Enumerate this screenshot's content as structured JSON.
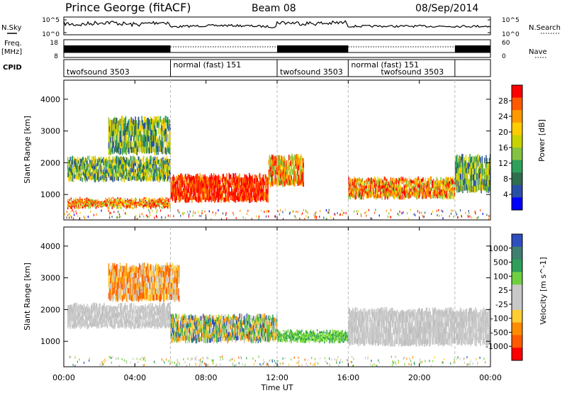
{
  "header": {
    "station": "Prince George (fitACF)",
    "beam": "Beam 08",
    "date": "08/Sep/2014"
  },
  "left_labels": {
    "nsky": "N.Sky",
    "freq": "Freq.",
    "freq_unit": "[MHz]",
    "cpid": "CPID"
  },
  "right_labels": {
    "nsearch": "N.Search",
    "nave": "Nave"
  },
  "noise_panel": {
    "left_ticks": [
      "10^5",
      "10^0"
    ],
    "right_ticks": [
      "10^5",
      "10^0"
    ]
  },
  "freq_panel": {
    "left_ticks": [
      "18",
      "8"
    ],
    "right_ticks": [
      "60",
      "0"
    ],
    "high_nave_segments": [
      [
        0,
        6
      ],
      [
        12,
        16
      ],
      [
        22,
        24
      ]
    ]
  },
  "cpid_segments": [
    {
      "start": 0,
      "end": 6,
      "labels": [
        "twofsound 3503"
      ]
    },
    {
      "start": 6,
      "end": 12,
      "labels": [
        "normal (fast) 151"
      ]
    },
    {
      "start": 12,
      "end": 16,
      "labels": [
        "twofsound 3503"
      ]
    },
    {
      "start": 16,
      "end": 22,
      "labels": [
        "normal (fast) 151",
        "twofsound 3503"
      ]
    }
  ],
  "chart_data": [
    {
      "type": "heatmap",
      "name": "power",
      "ylabel": "Slant Range [km]",
      "ylim": [
        200,
        4600
      ],
      "yticks": [
        1000,
        2000,
        3000,
        4000
      ],
      "xlim": [
        0,
        24
      ],
      "colorbar_label": "Power [dB]",
      "colorbar_ticks": [
        "28",
        "24",
        "20",
        "16",
        "12",
        "8",
        "4"
      ],
      "colorbar_colors": [
        "#ff0000",
        "#ff5a00",
        "#ff9900",
        "#ffcc00",
        "#c8d200",
        "#84c341",
        "#2fa05a",
        "#2f6e4e",
        "#2a4fa6",
        "#0000ff"
      ],
      "echo_regions": [
        {
          "t0": 0.2,
          "t1": 6.0,
          "r0": 1450,
          "r1": 2150,
          "level": "mid"
        },
        {
          "t0": 0.2,
          "t1": 6.0,
          "r0": 600,
          "r1": 850,
          "level": "high"
        },
        {
          "t0": 2.5,
          "t1": 6.0,
          "r0": 2300,
          "r1": 3400,
          "level": "mid"
        },
        {
          "t0": 6.0,
          "t1": 11.5,
          "r0": 800,
          "r1": 1600,
          "level": "very-high"
        },
        {
          "t0": 11.5,
          "t1": 13.5,
          "r0": 1300,
          "r1": 2200,
          "level": "high"
        },
        {
          "t0": 16.0,
          "t1": 22.0,
          "r0": 900,
          "r1": 1500,
          "level": "high"
        },
        {
          "t0": 22.0,
          "t1": 24.0,
          "r0": 1100,
          "r1": 2200,
          "level": "mid"
        }
      ]
    },
    {
      "type": "heatmap",
      "name": "velocity",
      "ylabel": "Slant Range [km]",
      "ylim": [
        200,
        4600
      ],
      "yticks": [
        1000,
        2000,
        3000,
        4000
      ],
      "xlim": [
        0,
        24
      ],
      "xticks": [
        "00:00",
        "04:00",
        "08:00",
        "12:00",
        "16:00",
        "20:00",
        "00:00"
      ],
      "xlabel": "Time UT",
      "colorbar_label": "Velocity [m s^-1]",
      "colorbar_ticks": [
        "1000",
        "500",
        "100",
        "25",
        "-25",
        "-100",
        "-500",
        "-1000"
      ],
      "colorbar_colors": [
        "#2f4fbf",
        "#3f7f6f",
        "#2e9e5a",
        "#6fcf3f",
        "#c8c8c8",
        "#c8c8c8",
        "#ffcc33",
        "#ff8c00",
        "#ff5a00",
        "#ff0000"
      ],
      "echo_regions": [
        {
          "t0": 0.2,
          "t1": 6.0,
          "r0": 1450,
          "r1": 2150,
          "level": "ground"
        },
        {
          "t0": 6.0,
          "t1": 12.0,
          "r0": 1000,
          "r1": 1800,
          "level": "mixed"
        },
        {
          "t0": 2.5,
          "t1": 6.5,
          "r0": 2300,
          "r1": 3400,
          "level": "away"
        },
        {
          "t0": 12.0,
          "t1": 16.0,
          "r0": 1000,
          "r1": 1300,
          "level": "toward"
        },
        {
          "t0": 16.0,
          "t1": 24.0,
          "r0": 900,
          "r1": 2000,
          "level": "ground"
        }
      ]
    }
  ]
}
